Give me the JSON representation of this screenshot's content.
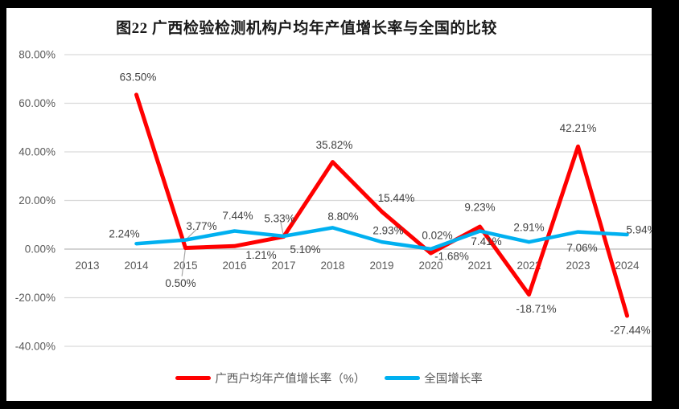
{
  "frame": {
    "outer_background": "#000000",
    "panel_background": "#ffffff"
  },
  "title": "图22 广西检验检测机构户均年产值增长率与全国的比较",
  "legend": {
    "position": "bottom",
    "items": [
      {
        "label": "广西户均年产值增长率（%）",
        "color": "#ff0000"
      },
      {
        "label": "全国增长率",
        "color": "#00b0f0"
      }
    ]
  },
  "chart_data": {
    "type": "line",
    "title": "图22 广西检验检测机构户均年产值增长率与全国的比较",
    "categories": [
      "2013",
      "2014",
      "2015",
      "2016",
      "2017",
      "2018",
      "2019",
      "2020",
      "2021",
      "2022",
      "2023",
      "2024"
    ],
    "series": [
      {
        "name": "广西户均年产值增长率（%）",
        "color": "#ff0000",
        "line_width": 5,
        "values": [
          null,
          63.5,
          0.5,
          1.21,
          5.1,
          35.82,
          15.44,
          -1.68,
          9.23,
          -18.71,
          42.21,
          -27.44
        ],
        "labels": [
          null,
          "63.50%",
          "0.50%",
          "1.21%",
          "5.10%",
          "35.82%",
          "15.44%",
          "-1.68%",
          "9.23%",
          "-18.71%",
          "42.21%",
          "-27.44%"
        ],
        "label_offsets": [
          null,
          [
            2,
            -22
          ],
          [
            -6,
            44
          ],
          [
            33,
            11
          ],
          [
            27,
            16
          ],
          [
            2,
            -21
          ],
          [
            18,
            -17
          ],
          [
            26,
            4
          ],
          [
            0,
            -24
          ],
          [
            9,
            18
          ],
          [
            0,
            -23
          ],
          [
            4,
            18
          ]
        ],
        "leader_indices": [
          2
        ]
      },
      {
        "name": "全国增长率",
        "color": "#00b0f0",
        "line_width": 4.5,
        "values": [
          null,
          2.24,
          3.77,
          7.44,
          5.33,
          8.8,
          2.93,
          0.02,
          7.41,
          2.91,
          7.06,
          5.94
        ],
        "labels": [
          null,
          "2.24%",
          "3.77%",
          "7.44%",
          "5.33%",
          "8.80%",
          "2.93%",
          "0.02%",
          "7.41%",
          "2.91%",
          "7.06%",
          "5.94%"
        ],
        "label_offsets": [
          null,
          [
            -15,
            -12
          ],
          [
            20,
            -17
          ],
          [
            4,
            -19
          ],
          [
            -5,
            -22
          ],
          [
            13,
            -14
          ],
          [
            8,
            -14
          ],
          [
            8,
            -17
          ],
          [
            8,
            13
          ],
          [
            0,
            -18
          ],
          [
            5,
            20
          ],
          [
            18,
            -6
          ]
        ],
        "leader_indices": [
          2,
          4
        ]
      }
    ],
    "y_axis": {
      "min": -40,
      "max": 80,
      "ticks": [
        {
          "label": "80.00%",
          "value": 80
        },
        {
          "label": "60.00%",
          "value": 60
        },
        {
          "label": "40.00%",
          "value": 40
        },
        {
          "label": "20.00%",
          "value": 20
        },
        {
          "label": "0.00%",
          "value": 0
        },
        {
          "label": "-20.00%",
          "value": -20
        },
        {
          "label": "-40.00%",
          "value": -40
        }
      ]
    },
    "grid": true,
    "data_labels": true,
    "legend_position": "bottom",
    "colors": {
      "gridline": "#d9d9d9",
      "zero_axis_line": "#c6c6c6",
      "leader_line": "#a6a6a6",
      "data_label_text": "#404040",
      "axis_tick_text": "#595959"
    }
  }
}
